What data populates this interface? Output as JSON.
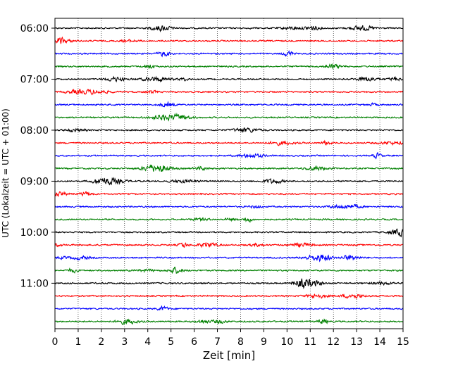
{
  "chart_data": {
    "type": "line",
    "title": "",
    "xlabel": "Zeit  [min]",
    "ylabel": "UTC (Lokalzeit = UTC + 01:00)",
    "xlim": [
      0,
      15
    ],
    "x_ticks": [
      "0",
      "1",
      "2",
      "3",
      "4",
      "5",
      "6",
      "7",
      "8",
      "9",
      "10",
      "11",
      "12",
      "13",
      "14",
      "15"
    ],
    "y_ticks": [
      {
        "label": "06:00",
        "trace": 0
      },
      {
        "label": "07:00",
        "trace": 4
      },
      {
        "label": "08:00",
        "trace": 8
      },
      {
        "label": "09:00",
        "trace": 12
      },
      {
        "label": "10:00",
        "trace": 16
      },
      {
        "label": "11:00",
        "trace": 20
      }
    ],
    "trace_count": 24,
    "trace_interval_min": 15,
    "start_time": "06:00",
    "trace_colors": [
      "#000000",
      "#ff0000",
      "#0000ff",
      "#008000"
    ],
    "grid": {
      "vertical": true,
      "style": "dotted"
    }
  }
}
